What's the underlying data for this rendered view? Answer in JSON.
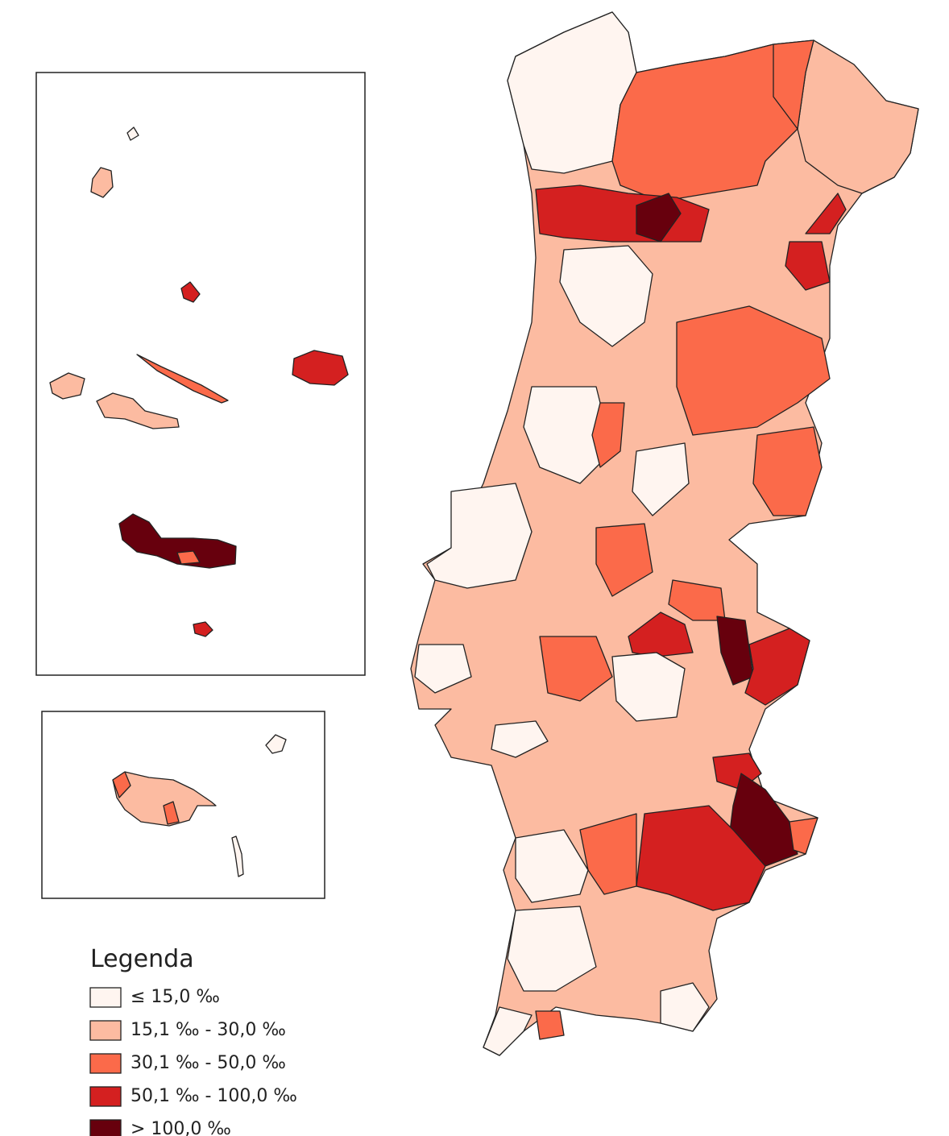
{
  "legend": {
    "title": "Legenda",
    "items": [
      {
        "label": "≤ 15,0 ‰",
        "color": "#fff5f0"
      },
      {
        "label": "15,1 ‰ - 30,0 ‰",
        "color": "#fcbba1"
      },
      {
        "label": "30,1 ‰ - 50,0 ‰",
        "color": "#fb6a4a"
      },
      {
        "label": "50,1 ‰ - 100,0 ‰",
        "color": "#d42020"
      },
      {
        "label": "> 100,0 ‰",
        "color": "#67000d"
      }
    ]
  }
}
